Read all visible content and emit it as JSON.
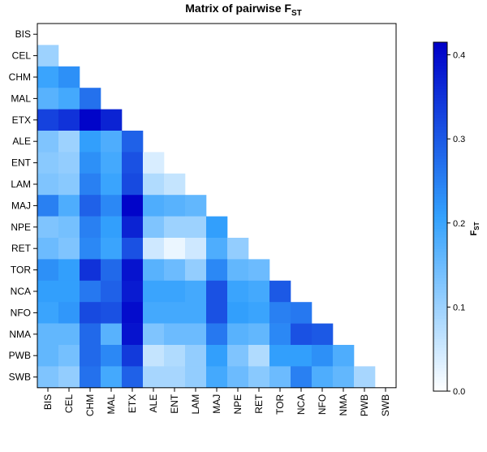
{
  "chart_data": {
    "type": "heatmap",
    "title_main": "Matrix of pairwise F",
    "title_sub": "ST",
    "labels": [
      "BIS",
      "CEL",
      "CHM",
      "MAL",
      "ETX",
      "ALE",
      "ENT",
      "LAM",
      "MAJ",
      "NPE",
      "RET",
      "TOR",
      "NCA",
      "NFO",
      "NMA",
      "PWB",
      "SWB"
    ],
    "values": [
      [],
      [
        0.1
      ],
      [
        0.2,
        0.23
      ],
      [
        0.17,
        0.19,
        0.27
      ],
      [
        0.33,
        0.35,
        0.41,
        0.37
      ],
      [
        0.13,
        0.1,
        0.21,
        0.18,
        0.29
      ],
      [
        0.12,
        0.11,
        0.23,
        0.19,
        0.31,
        0.04
      ],
      [
        0.13,
        0.12,
        0.25,
        0.2,
        0.32,
        0.08,
        0.06
      ],
      [
        0.25,
        0.18,
        0.29,
        0.24,
        0.41,
        0.18,
        0.17,
        0.16
      ],
      [
        0.13,
        0.14,
        0.25,
        0.21,
        0.37,
        0.13,
        0.1,
        0.1,
        0.21
      ],
      [
        0.15,
        0.13,
        0.24,
        0.2,
        0.31,
        0.05,
        0.02,
        0.05,
        0.18,
        0.11
      ],
      [
        0.23,
        0.21,
        0.35,
        0.28,
        0.39,
        0.17,
        0.15,
        0.11,
        0.24,
        0.16,
        0.15
      ],
      [
        0.21,
        0.21,
        0.26,
        0.29,
        0.38,
        0.2,
        0.2,
        0.19,
        0.31,
        0.2,
        0.19,
        0.3
      ],
      [
        0.2,
        0.22,
        0.32,
        0.31,
        0.4,
        0.19,
        0.19,
        0.19,
        0.31,
        0.21,
        0.2,
        0.25,
        0.26
      ],
      [
        0.16,
        0.16,
        0.28,
        0.17,
        0.39,
        0.13,
        0.15,
        0.15,
        0.26,
        0.17,
        0.16,
        0.24,
        0.31,
        0.3
      ],
      [
        0.16,
        0.14,
        0.28,
        0.24,
        0.34,
        0.06,
        0.08,
        0.11,
        0.21,
        0.13,
        0.08,
        0.21,
        0.21,
        0.23,
        0.18
      ],
      [
        0.13,
        0.11,
        0.27,
        0.19,
        0.29,
        0.09,
        0.09,
        0.11,
        0.19,
        0.15,
        0.12,
        0.15,
        0.25,
        0.18,
        0.16,
        0.09
      ]
    ],
    "colorbar": {
      "label_main": "F",
      "label_sub": "ST",
      "min": 0.0,
      "max": 0.415,
      "ticks": [
        "0.0",
        "0.1",
        "0.2",
        "0.3",
        "0.4"
      ],
      "tick_values": [
        0.0,
        0.1,
        0.2,
        0.3,
        0.4
      ]
    },
    "colors": {
      "low": "#ffffff",
      "mid": "#33a1fd",
      "high": "#0000c8"
    }
  }
}
